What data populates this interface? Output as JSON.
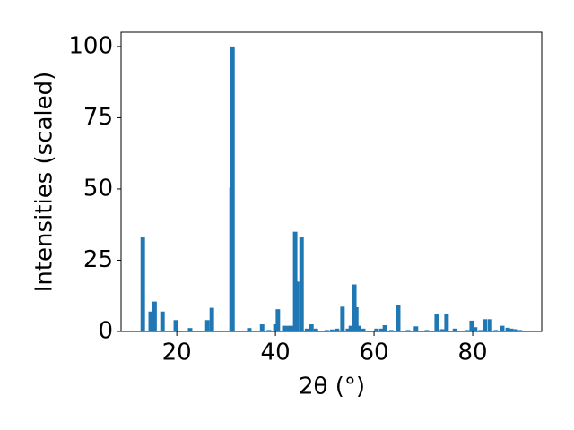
{
  "chart_data": {
    "type": "bar",
    "xlabel": "2θ (°)",
    "ylabel": "Intensities (scaled)",
    "color": "#1f77b4",
    "x": [
      13.1,
      14.7,
      15.5,
      17.1,
      19.8,
      22.7,
      26.2,
      27.1,
      31.1,
      31.3,
      34.7,
      37.3,
      38.7,
      40.0,
      40.5,
      41.8,
      42.7,
      43.5,
      44.0,
      44.4,
      45.3,
      46.4,
      47.3,
      48.2,
      50.4,
      51.5,
      52.5,
      53.6,
      54.7,
      55.3,
      56.0,
      56.4,
      56.9,
      57.8,
      60.5,
      61.5,
      62.2,
      63.5,
      64.9,
      66.9,
      68.5,
      70.7,
      72.7,
      73.8,
      74.7,
      76.4,
      78.9,
      79.8,
      80.5,
      81.6,
      82.5,
      83.5,
      84.7,
      86.0,
      87.1,
      87.8,
      88.7,
      89.6
    ],
    "values": [
      33,
      7,
      10.5,
      7,
      4,
      1.2,
      4,
      8.3,
      50.5,
      100,
      1.2,
      2.5,
      0.5,
      2.5,
      7.8,
      2,
      2,
      2,
      35,
      17.5,
      33,
      1,
      2.5,
      1,
      0.5,
      0.7,
      1,
      8.7,
      1,
      2,
      16.5,
      8.5,
      2,
      1,
      1,
      1,
      2.2,
      0.5,
      9.3,
      0.5,
      1.8,
      0.5,
      6.3,
      0.8,
      6.3,
      1,
      0.5,
      3.8,
      1.5,
      0.5,
      4.3,
      4.3,
      0.5,
      2,
      1.3,
      1,
      0.8,
      0.5
    ],
    "xlim": [
      8.7,
      94.0
    ],
    "xticks": [
      20,
      40,
      60,
      80
    ],
    "ylim": [
      0,
      105
    ],
    "yticks": [
      0,
      25,
      50,
      75,
      100
    ]
  }
}
